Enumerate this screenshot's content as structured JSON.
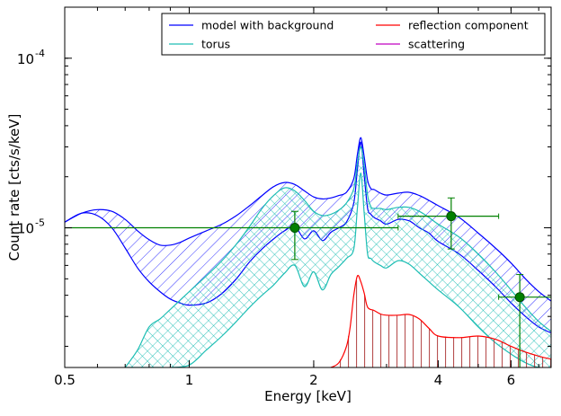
{
  "chart_data": {
    "type": "line",
    "xlabel": "Energy [keV]",
    "ylabel": "Count rate [cts/s/keV]",
    "x_scale": "log",
    "y_scale": "log",
    "xlim": [
      0.5,
      7.5
    ],
    "ylim": [
      1.5e-06,
      0.0002
    ],
    "x_ticks": [
      {
        "value": 0.5,
        "label": "0.5"
      },
      {
        "value": 1,
        "label": "1"
      },
      {
        "value": 2,
        "label": "2"
      },
      {
        "value": 4,
        "label": "4"
      },
      {
        "value": 6,
        "label": "6"
      }
    ],
    "y_ticks": [
      {
        "value": 1e-05,
        "base": "10",
        "exp": "-5"
      },
      {
        "value": 0.0001,
        "base": "10",
        "exp": "-4"
      }
    ],
    "legend": {
      "placement": "top-right",
      "columns": 2,
      "entries": [
        {
          "label": "model with background",
          "color": "#0000ff"
        },
        {
          "label": "reflection component",
          "color": "#ff0000"
        },
        {
          "label": "torus",
          "color": "#1ebeb4"
        },
        {
          "label": "scattering",
          "color": "#c000c0"
        }
      ]
    },
    "series": [
      {
        "name": "model with background",
        "color": "#0000ff",
        "style": "hatched band",
        "x": [
          0.5,
          0.55,
          0.6,
          0.65,
          0.7,
          0.75,
          0.8,
          0.85,
          0.9,
          0.95,
          1.0,
          1.1,
          1.2,
          1.3,
          1.4,
          1.5,
          1.6,
          1.7,
          1.8,
          1.9,
          2.0,
          2.1,
          2.2,
          2.3,
          2.4,
          2.5,
          2.55,
          2.6,
          2.65,
          2.7,
          2.75,
          2.8,
          2.9,
          3.0,
          3.2,
          3.4,
          3.6,
          3.8,
          4.0,
          4.5,
          5.0,
          5.5,
          6.0,
          6.5,
          7.0,
          7.5
        ],
        "upper": [
          1.08e-05,
          1.22e-05,
          1.28e-05,
          1.25e-05,
          1.12e-05,
          9.6e-06,
          8.5e-06,
          7.9e-06,
          7.9e-06,
          8.2e-06,
          8.7e-06,
          9.6e-06,
          1.05e-05,
          1.18e-05,
          1.35e-05,
          1.55e-05,
          1.75e-05,
          1.85e-05,
          1.8e-05,
          1.65e-05,
          1.52e-05,
          1.48e-05,
          1.5e-05,
          1.55e-05,
          1.62e-05,
          1.95e-05,
          2.7e-05,
          3.4e-05,
          2.6e-05,
          1.9e-05,
          1.7e-05,
          1.68e-05,
          1.6e-05,
          1.56e-05,
          1.6e-05,
          1.62e-05,
          1.55e-05,
          1.45e-05,
          1.35e-05,
          1.15e-05,
          9.3e-06,
          7.6e-06,
          6.2e-06,
          5e-06,
          4.2e-06,
          3.7e-06
        ],
        "lower": [
          1.08e-05,
          1.22e-05,
          1.18e-05,
          1e-05,
          7.6e-06,
          5.8e-06,
          4.8e-06,
          4.2e-06,
          3.8e-06,
          3.6e-06,
          3.5e-06,
          3.6e-06,
          4.1e-06,
          5e-06,
          6.3e-06,
          7.5e-06,
          8.6e-06,
          9.6e-06,
          1.02e-05,
          8.6e-06,
          9.6e-06,
          8.4e-06,
          9.4e-06,
          1e-05,
          1.08e-05,
          1.4e-05,
          2.2e-05,
          3.2e-05,
          2e-05,
          1.3e-05,
          1.2e-05,
          1.15e-05,
          1.1e-05,
          1.05e-05,
          1.12e-05,
          1.1e-05,
          1e-05,
          9.3e-06,
          8.3e-06,
          7e-06,
          5.6e-06,
          4.5e-06,
          3.6e-06,
          3e-06,
          2.6e-06,
          2.4e-06
        ]
      },
      {
        "name": "torus",
        "color": "#1ebeb4",
        "style": "cross-hatched band",
        "x": [
          0.7,
          0.75,
          0.8,
          0.85,
          0.9,
          1.0,
          1.1,
          1.2,
          1.3,
          1.4,
          1.5,
          1.6,
          1.7,
          1.8,
          1.9,
          2.0,
          2.1,
          2.2,
          2.3,
          2.4,
          2.5,
          2.55,
          2.6,
          2.65,
          2.7,
          2.75,
          2.8,
          2.9,
          3.0,
          3.2,
          3.4,
          3.6,
          3.8,
          4.0,
          4.5,
          5.0,
          5.5,
          6.0,
          6.5,
          7.0,
          7.5
        ],
        "upper": [
          1.5e-06,
          1.9e-06,
          2.6e-06,
          2.9e-06,
          3.3e-06,
          4.2e-06,
          5.2e-06,
          6.4e-06,
          8e-06,
          1.02e-05,
          1.3e-05,
          1.55e-05,
          1.72e-05,
          1.65e-05,
          1.45e-05,
          1.25e-05,
          1.18e-05,
          1.2e-05,
          1.27e-05,
          1.4e-05,
          1.7e-05,
          2.4e-05,
          3e-05,
          2.3e-05,
          1.55e-05,
          1.33e-05,
          1.3e-05,
          1.3e-05,
          1.28e-05,
          1.32e-05,
          1.32e-05,
          1.25e-05,
          1.15e-05,
          1.05e-05,
          8.8e-06,
          7e-06,
          5.5e-06,
          4.3e-06,
          3.4e-06,
          2.8e-06,
          2.45e-06
        ],
        "lower": [
          1.5e-06,
          1.5e-06,
          1.5e-06,
          1.5e-06,
          1.5e-06,
          1.55e-06,
          1.9e-06,
          2.3e-06,
          2.8e-06,
          3.4e-06,
          4e-06,
          4.6e-06,
          5.4e-06,
          6e-06,
          4.5e-06,
          5.5e-06,
          4.3e-06,
          5.3e-06,
          5.9e-06,
          6.6e-06,
          7.5e-06,
          1.3e-05,
          2.1e-05,
          1.2e-05,
          7e-06,
          6.6e-06,
          6.3e-06,
          6e-06,
          5.8e-06,
          6.4e-06,
          6.1e-06,
          5.4e-06,
          4.8e-06,
          4.3e-06,
          3.4e-06,
          2.6e-06,
          2.1e-06,
          1.8e-06,
          1.6e-06,
          1.5e-06,
          1.5e-06
        ]
      },
      {
        "name": "reflection component",
        "color": "#ff0000",
        "style": "line with vertical hatch",
        "x": [
          2.2,
          2.3,
          2.4,
          2.45,
          2.5,
          2.55,
          2.6,
          2.65,
          2.7,
          2.8,
          2.9,
          3.0,
          3.2,
          3.4,
          3.6,
          3.8,
          4.0,
          4.5,
          5.0,
          5.5,
          6.0,
          6.5,
          7.0,
          7.5
        ],
        "values": [
          1.5e-06,
          1.6e-06,
          2e-06,
          2.6e-06,
          4e-06,
          5.2e-06,
          4.8e-06,
          4.1e-06,
          3.4e-06,
          3.25e-06,
          3.1e-06,
          3.05e-06,
          3.05e-06,
          3.08e-06,
          2.9e-06,
          2.55e-06,
          2.3e-06,
          2.25e-06,
          2.3e-06,
          2.2e-06,
          2e-06,
          1.85e-06,
          1.75e-06,
          1.68e-06
        ]
      },
      {
        "name": "scattering",
        "color": "#c000c0",
        "style": "line",
        "x": [],
        "values": []
      },
      {
        "name": "data",
        "color": "#008000",
        "style": "points with error bars",
        "points": [
          {
            "x": 1.8,
            "y": 1e-05,
            "xerr": [
              0.5,
              3.2
            ],
            "yerr": [
              6.5e-06,
              1.25e-05
            ]
          },
          {
            "x": 4.3,
            "y": 1.17e-05,
            "xerr": [
              3.2,
              5.6
            ],
            "yerr": [
              7.5e-06,
              1.5e-05
            ]
          },
          {
            "x": 6.3,
            "y": 3.9e-06,
            "xerr": [
              5.6,
              7.5
            ],
            "yerr": [
              1.5e-06,
              5.3e-06
            ]
          }
        ]
      }
    ]
  }
}
